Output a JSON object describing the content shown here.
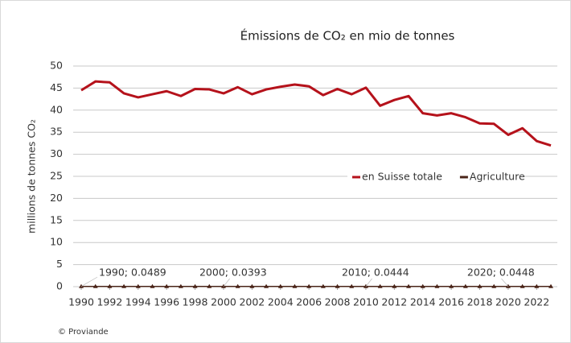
{
  "chart_data": {
    "type": "line",
    "title": "Émissions de CO₂ en mio de tonnes",
    "ylabel": "millions de tonnes CO₂",
    "source": "© Proviande",
    "x": [
      1990,
      1991,
      1992,
      1993,
      1994,
      1995,
      1996,
      1997,
      1998,
      1999,
      2000,
      2001,
      2002,
      2003,
      2004,
      2005,
      2006,
      2007,
      2008,
      2009,
      2010,
      2011,
      2012,
      2013,
      2014,
      2015,
      2016,
      2017,
      2018,
      2019,
      2020,
      2021,
      2022,
      2023
    ],
    "xlim": [
      1990,
      2023
    ],
    "xticks": [
      1990,
      1992,
      1994,
      1996,
      1998,
      2000,
      2002,
      2004,
      2006,
      2008,
      2010,
      2012,
      2014,
      2016,
      2018,
      2020,
      2022
    ],
    "ylim": [
      0,
      50
    ],
    "yticks": [
      0,
      5,
      10,
      15,
      20,
      25,
      30,
      35,
      40,
      45,
      50
    ],
    "grid": true,
    "legend": "center-right",
    "series": [
      {
        "name": "en Suisse totale",
        "color": "#b5121b",
        "values": [
          44.5,
          46.5,
          46.3,
          43.8,
          42.9,
          43.6,
          44.3,
          43.2,
          44.8,
          44.7,
          43.8,
          45.2,
          43.6,
          44.7,
          45.3,
          45.8,
          45.4,
          43.4,
          44.8,
          43.6,
          45.1,
          41.0,
          42.3,
          43.2,
          39.3,
          38.8,
          39.3,
          38.4,
          37.0,
          36.9,
          34.4,
          35.9,
          33.0,
          32.0
        ]
      },
      {
        "name": "Agriculture",
        "color": "#4a2418",
        "values": [
          0.0489,
          0.048,
          0.047,
          0.046,
          0.045,
          0.045,
          0.044,
          0.043,
          0.042,
          0.041,
          0.0393,
          0.04,
          0.041,
          0.042,
          0.043,
          0.043,
          0.044,
          0.044,
          0.044,
          0.044,
          0.0444,
          0.044,
          0.045,
          0.045,
          0.045,
          0.045,
          0.045,
          0.045,
          0.045,
          0.045,
          0.0448,
          0.045,
          0.045,
          0.045
        ],
        "value_labels": [
          "1990; 0.0489",
          null,
          null,
          null,
          null,
          null,
          null,
          null,
          null,
          null,
          "2000; 0.0393",
          null,
          null,
          null,
          null,
          null,
          null,
          null,
          null,
          null,
          "2010; 0.0444",
          null,
          null,
          null,
          null,
          null,
          null,
          null,
          null,
          null,
          "2020; 0.0448",
          null,
          null,
          null
        ]
      }
    ]
  }
}
